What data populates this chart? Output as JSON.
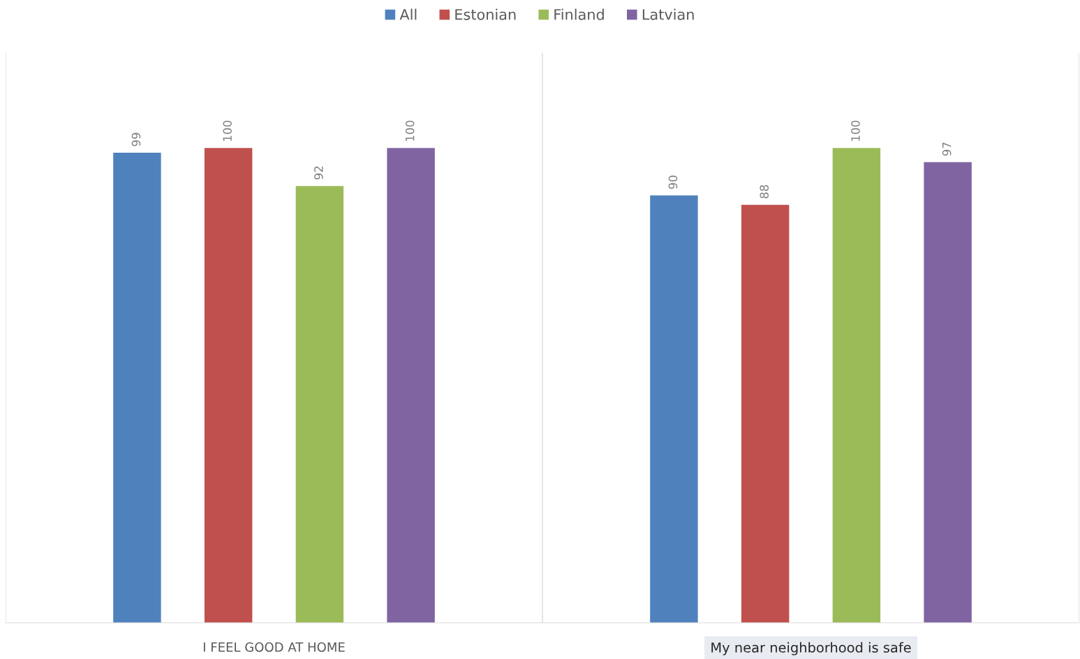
{
  "chart_data": {
    "type": "bar",
    "categories": [
      "I FEEL GOOD AT HOME",
      "My near neighborhood is safe"
    ],
    "series": [
      {
        "name": "All",
        "color": "#4f81bd",
        "values": [
          99,
          90
        ]
      },
      {
        "name": "Estonian",
        "color": "#c0504d",
        "values": [
          100,
          88
        ]
      },
      {
        "name": "Finland",
        "color": "#9bbb59",
        "values": [
          92,
          100
        ]
      },
      {
        "name": "Latvian",
        "color": "#8064a2",
        "values": [
          100,
          97
        ]
      }
    ],
    "ylim": [
      0,
      120
    ],
    "tick_labels": "x",
    "data_labels": true,
    "grid": "x",
    "legend": "top"
  }
}
